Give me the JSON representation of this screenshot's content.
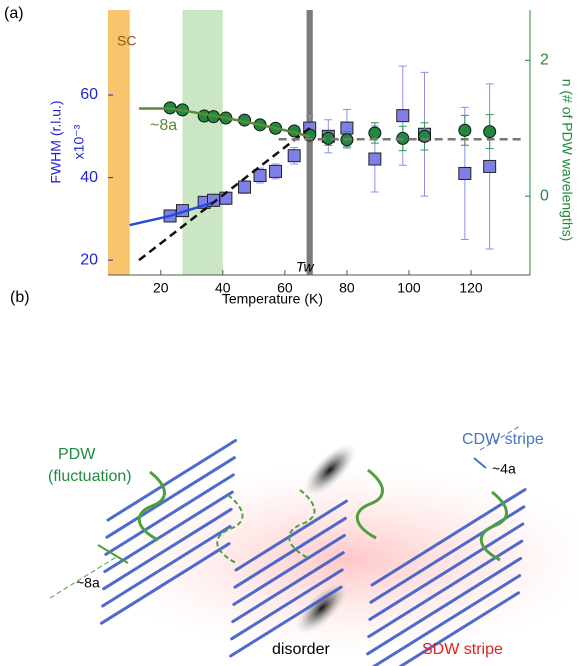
{
  "chart_data": {
    "type": "scatter",
    "panel_label": "(a)",
    "xlabel": "Temperature (K)",
    "ylabel": "FWHM (r.l.u.)",
    "ylabel_unit": "x10⁻³",
    "y2label": "n (# of PDW wavelengths)",
    "annotations": [
      "SC",
      "~8a",
      "Tw"
    ],
    "xlim": [
      3,
      139
    ],
    "xticks": [
      20,
      40,
      60,
      80,
      100,
      120
    ],
    "ylim": [
      16.4,
      80.6
    ],
    "yticks": [
      20,
      40,
      60
    ],
    "y2lim": [
      -1.16,
      2.74
    ],
    "y2ticks": [
      0,
      2
    ],
    "bands": [
      {
        "from": 3,
        "to": 10,
        "color": "#f6b23c"
      },
      {
        "from": 27,
        "to": 40,
        "color": "#b9ddb1"
      },
      {
        "from": 67,
        "to": 69,
        "color": "#5a5a5a"
      }
    ],
    "series": [
      {
        "marker": "square",
        "color": "#7f7fe8",
        "error_color": "#8f8fe8",
        "x": [
          23,
          27,
          34,
          37,
          41,
          47,
          52,
          57,
          63,
          68,
          74,
          80,
          89,
          98,
          105,
          118,
          126
        ],
        "values": [
          30.7,
          32,
          34,
          34.5,
          35,
          37.7,
          40.5,
          41.5,
          45.3,
          52,
          50,
          52,
          44.5,
          55,
          50.5,
          41,
          42.7
        ],
        "errors": [
          1,
          1,
          1.3,
          1.5,
          1.5,
          1.5,
          1.8,
          1.8,
          2,
          3,
          4,
          4.5,
          8,
          12,
          15,
          16,
          20
        ]
      },
      {
        "marker": "circle",
        "axis": "y2",
        "color": "#1f8a3e",
        "error_color": "#2e9a4a",
        "x": [
          23,
          27,
          34,
          37,
          41,
          47,
          52,
          57,
          63,
          68,
          74,
          80,
          89,
          98,
          105,
          118,
          126
        ],
        "values": [
          1.3,
          1.27,
          1.18,
          1.17,
          1.15,
          1.12,
          1.05,
          1.0,
          0.96,
          0.9,
          0.85,
          0.83,
          0.93,
          0.85,
          0.88,
          0.97,
          0.95
        ],
        "errors": [
          0.04,
          0.04,
          0.05,
          0.05,
          0.05,
          0.05,
          0.06,
          0.06,
          0.06,
          0.08,
          0.1,
          0.12,
          0.15,
          0.18,
          0.2,
          0.22,
          0.25
        ]
      },
      {
        "marker": "line",
        "axis": "y2",
        "color": "#5a8a3a",
        "x": [
          13,
          23,
          30,
          40,
          50,
          60,
          68
        ],
        "values": [
          1.29,
          1.29,
          1.24,
          1.16,
          1.07,
          0.97,
          0.88
        ]
      },
      {
        "marker": "line",
        "color": "#1f4fd8",
        "x": [
          10,
          23,
          37
        ],
        "values": [
          28.5,
          30.7,
          34
        ]
      },
      {
        "marker": "dashed",
        "color": "#111111",
        "x": [
          13,
          68
        ],
        "values": [
          20,
          52
        ]
      },
      {
        "marker": "dashed",
        "color": "#777777",
        "x": [
          58,
          137
        ],
        "values": [
          49.3,
          49.3
        ]
      }
    ]
  },
  "schematic": {
    "label": "(b)",
    "pdw": "PDW",
    "pdw_note": "(fluctuation)",
    "cdw": "CDW stripe",
    "spacing_cdw": "~4a",
    "spacing_pdw": "~8a",
    "disorder": "disorder",
    "sdw": "SDW stripe"
  }
}
